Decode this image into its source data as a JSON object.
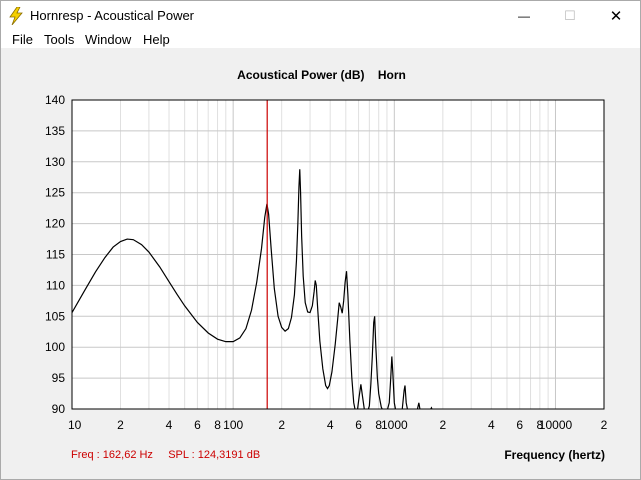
{
  "window": {
    "title": "Hornresp - Acoustical Power",
    "minimize_glyph": "—",
    "maximize_glyph": "☐",
    "close_glyph": "✕"
  },
  "menu": [
    {
      "label": "File"
    },
    {
      "label": "Tools"
    },
    {
      "label": "Window"
    },
    {
      "label": "Help"
    }
  ],
  "chart_data": {
    "type": "line",
    "title": "Acoustical Power (dB)    Horn",
    "xlabel": "Frequency (hertz)",
    "ylabel": "",
    "x_scale": "log",
    "xlim": [
      10,
      20000
    ],
    "ylim": [
      90,
      140
    ],
    "y_ticks": [
      90,
      95,
      100,
      105,
      110,
      115,
      120,
      125,
      130,
      135,
      140
    ],
    "x_tick_labels": [
      {
        "value": 10,
        "label": "10"
      },
      {
        "value": 20,
        "label": "2"
      },
      {
        "value": 40,
        "label": "4"
      },
      {
        "value": 60,
        "label": "6"
      },
      {
        "value": 80,
        "label": "8"
      },
      {
        "value": 100,
        "label": "100"
      },
      {
        "value": 200,
        "label": "2"
      },
      {
        "value": 400,
        "label": "4"
      },
      {
        "value": 600,
        "label": "6"
      },
      {
        "value": 800,
        "label": "8"
      },
      {
        "value": 1000,
        "label": "1000"
      },
      {
        "value": 2000,
        "label": "2"
      },
      {
        "value": 4000,
        "label": "4"
      },
      {
        "value": 6000,
        "label": "6"
      },
      {
        "value": 8000,
        "label": "8"
      },
      {
        "value": 10000,
        "label": "10000"
      },
      {
        "value": 20000,
        "label": "2"
      }
    ],
    "grid": true,
    "cursor_freq": 162.62,
    "cursor_color": "#cc0000",
    "series": [
      {
        "color": "#000000",
        "points": [
          [
            10,
            105.6
          ],
          [
            12,
            109.2
          ],
          [
            14,
            112.2
          ],
          [
            16,
            114.5
          ],
          [
            18,
            116.2
          ],
          [
            20,
            117.1
          ],
          [
            22,
            117.5
          ],
          [
            24,
            117.4
          ],
          [
            27,
            116.6
          ],
          [
            30,
            115.4
          ],
          [
            35,
            113.0
          ],
          [
            40,
            110.6
          ],
          [
            45,
            108.5
          ],
          [
            50,
            106.7
          ],
          [
            60,
            104.0
          ],
          [
            70,
            102.3
          ],
          [
            80,
            101.3
          ],
          [
            90,
            100.9
          ],
          [
            100,
            100.9
          ],
          [
            110,
            101.5
          ],
          [
            120,
            103.0
          ],
          [
            130,
            106.0
          ],
          [
            140,
            110.5
          ],
          [
            150,
            116.0
          ],
          [
            157,
            121.0
          ],
          [
            162,
            123.2
          ],
          [
            166,
            121.5
          ],
          [
            172,
            116.0
          ],
          [
            180,
            109.5
          ],
          [
            190,
            105.0
          ],
          [
            200,
            103.2
          ],
          [
            210,
            102.6
          ],
          [
            220,
            103.0
          ],
          [
            230,
            104.8
          ],
          [
            240,
            108.5
          ],
          [
            247,
            114.0
          ],
          [
            252,
            120.0
          ],
          [
            256,
            126.0
          ],
          [
            259,
            128.8
          ],
          [
            262,
            125.0
          ],
          [
            266,
            118.0
          ],
          [
            272,
            111.5
          ],
          [
            280,
            107.2
          ],
          [
            290,
            105.7
          ],
          [
            300,
            105.6
          ],
          [
            310,
            106.7
          ],
          [
            318,
            109.0
          ],
          [
            323,
            110.8
          ],
          [
            328,
            110.0
          ],
          [
            335,
            106.0
          ],
          [
            345,
            101.0
          ],
          [
            360,
            96.5
          ],
          [
            375,
            93.8
          ],
          [
            385,
            93.3
          ],
          [
            395,
            93.8
          ],
          [
            410,
            96.0
          ],
          [
            430,
            100.5
          ],
          [
            445,
            104.5
          ],
          [
            455,
            107.2
          ],
          [
            465,
            106.5
          ],
          [
            475,
            105.5
          ],
          [
            485,
            107.5
          ],
          [
            495,
            110.5
          ],
          [
            505,
            112.3
          ],
          [
            515,
            108.5
          ],
          [
            530,
            101.0
          ],
          [
            545,
            95.0
          ],
          [
            560,
            91.0
          ],
          [
            575,
            89.5
          ],
          [
            590,
            89.8
          ],
          [
            605,
            92.0
          ],
          [
            620,
            94.0
          ],
          [
            635,
            92.0
          ],
          [
            655,
            89.5
          ],
          [
            680,
            89.5
          ],
          [
            700,
            90.5
          ],
          [
            715,
            94.0
          ],
          [
            730,
            98.5
          ],
          [
            745,
            104.0
          ],
          [
            755,
            105.0
          ],
          [
            768,
            100.0
          ],
          [
            785,
            95.0
          ],
          [
            800,
            92.5
          ],
          [
            830,
            90.3
          ],
          [
            860,
            89.5
          ],
          [
            900,
            89.6
          ],
          [
            930,
            91.0
          ],
          [
            950,
            95.0
          ],
          [
            965,
            98.5
          ],
          [
            978,
            96.0
          ],
          [
            1000,
            91.0
          ],
          [
            1030,
            89.2
          ],
          [
            1080,
            89.2
          ],
          [
            1120,
            90.0
          ],
          [
            1150,
            93.0
          ],
          [
            1165,
            93.8
          ],
          [
            1185,
            91.0
          ],
          [
            1220,
            89.3
          ],
          [
            1300,
            89.3
          ],
          [
            1380,
            89.6
          ],
          [
            1420,
            91.0
          ],
          [
            1450,
            89.6
          ],
          [
            1550,
            89.3
          ],
          [
            1650,
            89.6
          ],
          [
            1700,
            90.2
          ],
          [
            1750,
            89.3
          ],
          [
            1800,
            89.0
          ]
        ]
      }
    ]
  },
  "status": {
    "freq_text": "Freq : 162,62 Hz",
    "spl_text": "SPL : 124,3191 dB",
    "xlabel_text": "Frequency (hertz)"
  }
}
